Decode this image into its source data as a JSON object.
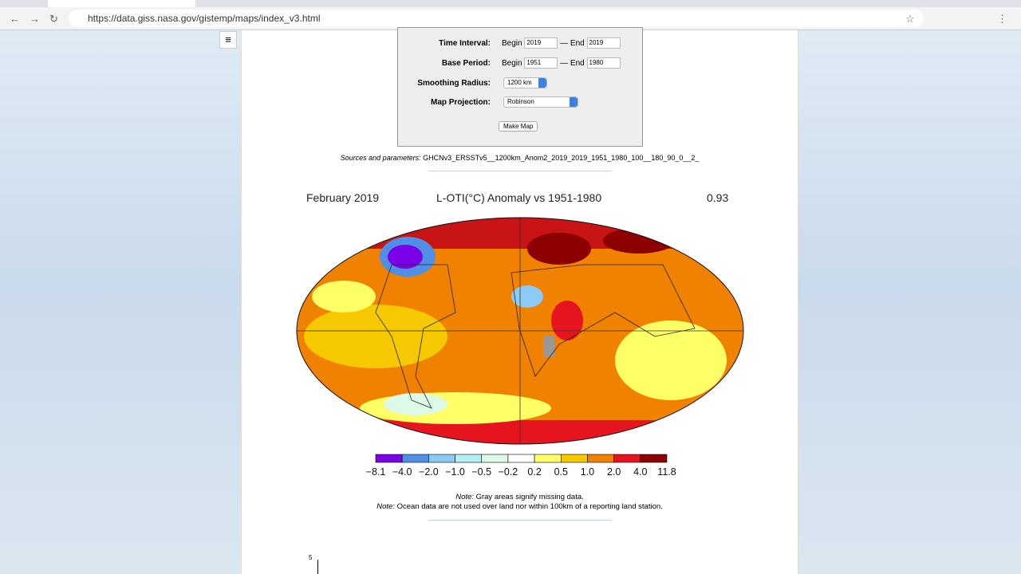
{
  "browser": {
    "url": "https://data.giss.nasa.gov/gistemp/maps/index_v3.html"
  },
  "form": {
    "time_interval": {
      "label": "Time Interval:",
      "begin_label": "Begin",
      "begin": "2019",
      "sep": "—",
      "end_label": "End",
      "end": "2019"
    },
    "base_period": {
      "label": "Base Period:",
      "begin_label": "Begin",
      "begin": "1951",
      "sep": "—",
      "end_label": "End",
      "end": "1980"
    },
    "smoothing": {
      "label": "Smoothing Radius:",
      "value": "1200 km"
    },
    "projection": {
      "label": "Map Projection:",
      "value": "Robinson"
    },
    "button": "Make Map"
  },
  "sources": {
    "label": "Sources and parameters:",
    "text": "GHCNv3_ERSSTv5__1200km_Anom2_2019_2019_1951_1980_100__180_90_0__2_"
  },
  "map": {
    "period": "February 2019",
    "title": "L-OTI(°C) Anomaly vs 1951-1980",
    "mean": "0.93"
  },
  "colorbar": {
    "colors": [
      "#7a00e6",
      "#4f8fe6",
      "#8ccbf5",
      "#b4f0f5",
      "#dcfae6",
      "#ffffff",
      "#ffff66",
      "#f5c800",
      "#f08200",
      "#e6141e",
      "#8c0000"
    ],
    "labels": [
      "−8.1",
      "−4.0",
      "−2.0",
      "−1.0",
      "−0.5",
      "−0.2",
      "0.2",
      "0.5",
      "1.0",
      "2.0",
      "4.0",
      "11.8"
    ]
  },
  "notes": [
    {
      "label": "Note:",
      "text": "Gray areas signify missing data."
    },
    {
      "label": "Note:",
      "text": "Ocean data are not used over land nor within 100km of a reporting land station."
    }
  ],
  "next_chart": {
    "tick": "5"
  }
}
